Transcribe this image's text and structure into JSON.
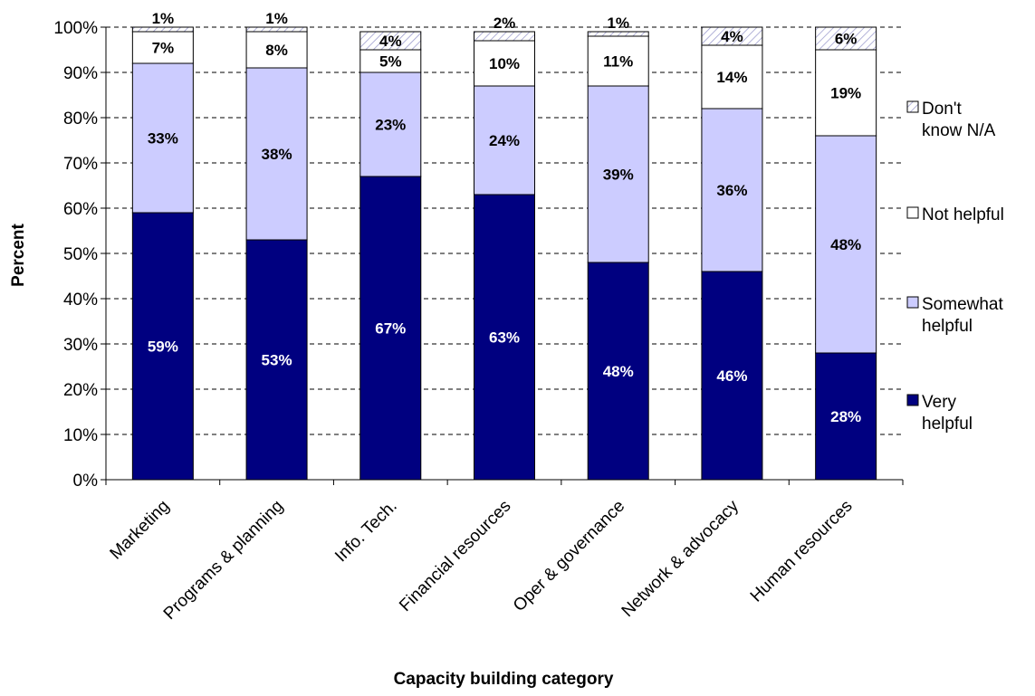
{
  "chart_data": {
    "type": "bar",
    "stacked": true,
    "title": "",
    "xlabel": "Capacity building category",
    "ylabel": "Percent",
    "ylim": [
      0,
      100
    ],
    "yticks": [
      "0%",
      "10%",
      "20%",
      "30%",
      "40%",
      "50%",
      "60%",
      "70%",
      "80%",
      "90%",
      "100%"
    ],
    "grid": true,
    "legend_position": "right",
    "categories": [
      "Marketing",
      "Programs & planning",
      "Info. Tech.",
      "Financial resources",
      "Oper & governance",
      "Network & advocacy",
      "Human resources"
    ],
    "series": [
      {
        "name": "Very helpful",
        "color": "#000080",
        "values": [
          59,
          53,
          67,
          63,
          48,
          46,
          28
        ],
        "labels": [
          "59%",
          "53%",
          "67%",
          "63%",
          "48%",
          "46%",
          "28%"
        ]
      },
      {
        "name": "Somewhat helpful",
        "color": "#ccccff",
        "values": [
          33,
          38,
          23,
          24,
          39,
          36,
          48
        ],
        "labels": [
          "33%",
          "38%",
          "23%",
          "24%",
          "39%",
          "36%",
          "48%"
        ]
      },
      {
        "name": "Not helpful",
        "color": "#ffffff",
        "values": [
          7,
          8,
          5,
          10,
          11,
          14,
          19
        ],
        "labels": [
          "7%",
          "8%",
          "5%",
          "10%",
          "11%",
          "14%",
          "19%"
        ]
      },
      {
        "name": "Don't know N/A",
        "color": "#ffffff",
        "pattern": "hatch",
        "values": [
          1,
          1,
          4,
          2,
          1,
          4,
          6
        ],
        "labels": [
          "1%",
          "1%",
          "4%",
          "2%",
          "1%",
          "4%",
          "6%"
        ]
      }
    ],
    "legend": [
      {
        "lines": [
          "Don't",
          "know N/A"
        ]
      },
      {
        "lines": [
          "Not helpful"
        ]
      },
      {
        "lines": [
          "Somewhat",
          "helpful"
        ]
      },
      {
        "lines": [
          "Very",
          "helpful"
        ]
      }
    ]
  }
}
